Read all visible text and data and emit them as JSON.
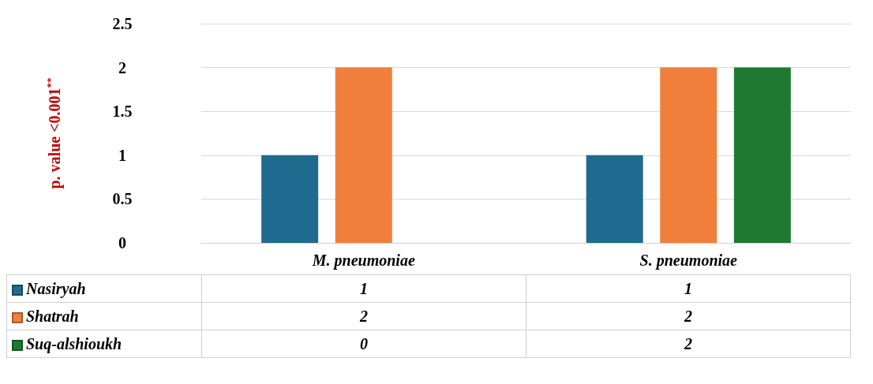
{
  "chart_data": {
    "type": "bar",
    "ylabel": "p. value <0.001$^{**}$",
    "categories": [
      "M. pneumoniae",
      "S. pneumoniae"
    ],
    "series": [
      {
        "name": "Nasiryah",
        "color": "#1f6a8f",
        "values": [
          1,
          1
        ]
      },
      {
        "name": "Shatrah",
        "color": "#f07f3b",
        "values": [
          2,
          2
        ]
      },
      {
        "name": "Suq-alshioukh",
        "color": "#1e7a32",
        "values": [
          0,
          2
        ]
      }
    ],
    "ylim": [
      0,
      2.5
    ],
    "yticks": [
      0,
      0.5,
      1,
      1.5,
      2,
      2.5
    ],
    "grid": "y",
    "legend": "bottom",
    "data_labels": true
  }
}
